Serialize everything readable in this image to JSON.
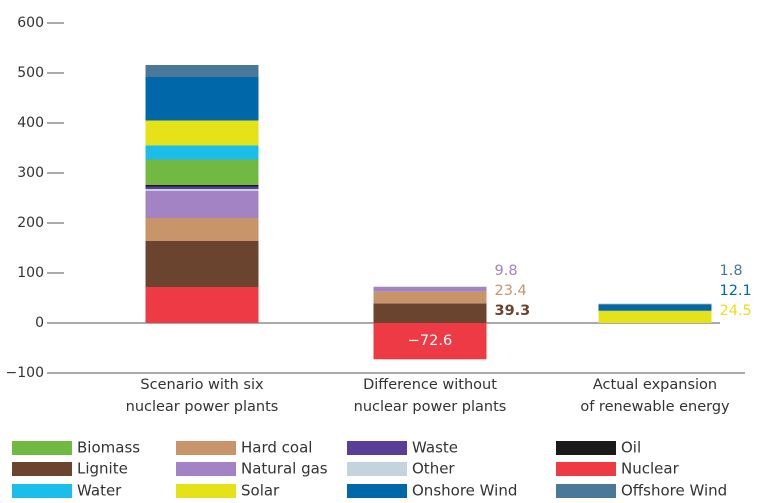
{
  "chart_data": {
    "type": "stacked_bar",
    "categories": [
      "Scenario with six\nnuclear power plants",
      "Difference without\nnuclear power plants",
      "Actual expansion\nof renewable energy"
    ],
    "ylim": [
      -100,
      600
    ],
    "yticks": [
      {
        "value": -100,
        "label": "−100"
      },
      0,
      100,
      200,
      300,
      400,
      500,
      600
    ],
    "series": [
      {
        "name": "Nuclear",
        "color": "#ee3a45",
        "values": [
          72,
          -72.6,
          null
        ],
        "value_labels": [
          null,
          "−72.6",
          null
        ]
      },
      {
        "name": "Lignite",
        "color": "#6b4430",
        "values": [
          92,
          39.3,
          null
        ]
      },
      {
        "name": "Hard coal",
        "color": "#c8956a",
        "values": [
          46,
          23.4,
          null
        ]
      },
      {
        "name": "Natural gas",
        "color": "#a383c4",
        "values": [
          54,
          9.8,
          null
        ]
      },
      {
        "name": "Other",
        "color": "#c5d3dc",
        "values": [
          4,
          null,
          null
        ]
      },
      {
        "name": "Waste",
        "color": "#5a3d96",
        "values": [
          5,
          null,
          null
        ]
      },
      {
        "name": "Oil",
        "color": "#1a1a1a",
        "values": [
          3,
          null,
          null
        ]
      },
      {
        "name": "Biomass",
        "color": "#72b943",
        "values": [
          51,
          null,
          null
        ]
      },
      {
        "name": "Water",
        "color": "#1bbeea",
        "values": [
          28,
          null,
          null
        ]
      },
      {
        "name": "Solar",
        "color": "#e5e21a",
        "values": [
          50,
          null,
          24.5
        ]
      },
      {
        "name": "Onshore Wind",
        "color": "#0068a9",
        "values": [
          87,
          null,
          12.1
        ]
      },
      {
        "name": "Offshore Wind",
        "color": "#4a7898",
        "values": [
          24,
          null,
          1.8
        ]
      }
    ]
  }
}
